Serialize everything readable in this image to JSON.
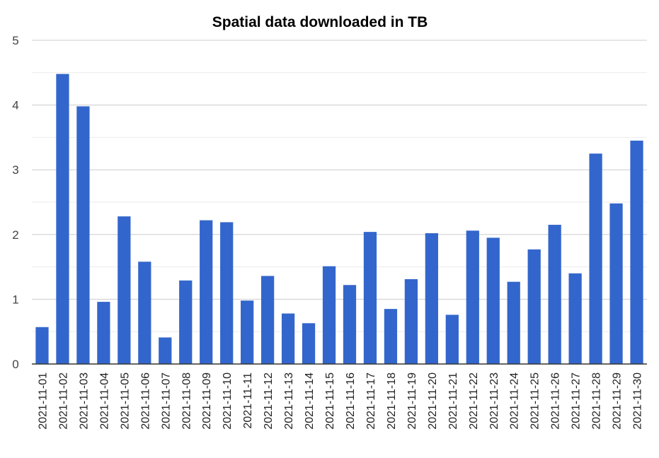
{
  "chart_data": {
    "type": "bar",
    "title": "Spatial data downloaded in TB",
    "xlabel": "",
    "ylabel": "",
    "ylim": [
      0,
      5
    ],
    "yticks": [
      "0",
      "1",
      "2",
      "3",
      "4",
      "5"
    ],
    "grid": true,
    "legend": "none",
    "categories": [
      "2021-11-01",
      "2021-11-02",
      "2021-11-03",
      "2021-11-04",
      "2021-11-05",
      "2021-11-06",
      "2021-11-07",
      "2021-11-08",
      "2021-11-09",
      "2021-11-10",
      "2021-11-11",
      "2021-11-12",
      "2021-11-13",
      "2021-11-14",
      "2021-11-15",
      "2021-11-16",
      "2021-11-17",
      "2021-11-18",
      "2021-11-19",
      "2021-11-20",
      "2021-11-21",
      "2021-11-22",
      "2021-11-23",
      "2021-11-24",
      "2021-11-25",
      "2021-11-26",
      "2021-11-27",
      "2021-11-28",
      "2021-11-29",
      "2021-11-30"
    ],
    "values": [
      0.57,
      4.48,
      3.98,
      0.96,
      2.28,
      1.58,
      0.41,
      1.29,
      2.22,
      2.19,
      0.98,
      1.36,
      0.78,
      0.63,
      1.51,
      1.22,
      2.04,
      0.85,
      1.31,
      2.02,
      0.76,
      2.06,
      1.95,
      1.27,
      1.77,
      2.15,
      1.4,
      3.25,
      2.48,
      3.45
    ],
    "colors": {
      "bar": "#3366cc",
      "grid_major": "#cccccc",
      "grid_minor": "#ebebeb",
      "axis": "#333333"
    }
  }
}
